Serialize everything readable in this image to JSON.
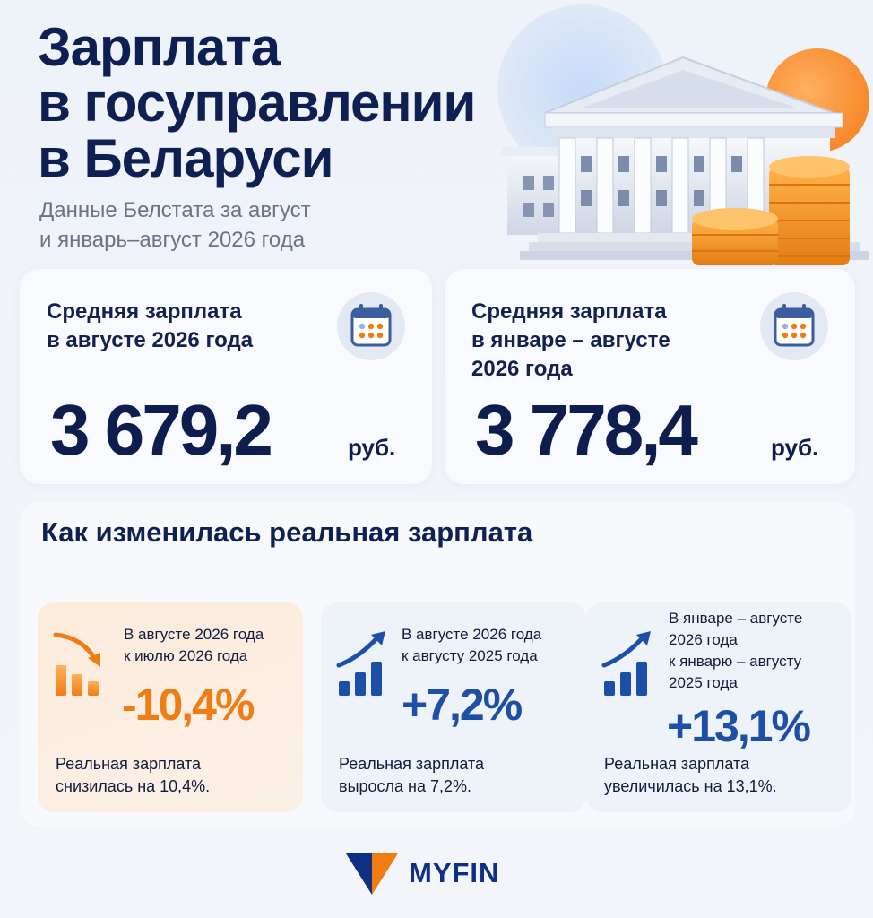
{
  "header": {
    "title_lines": [
      "Зарплата",
      "в госуправлении",
      "в Беларуси"
    ],
    "subtitle_lines": [
      "Данные Белстата за август",
      "и январь–август 2026 года"
    ]
  },
  "cards": [
    {
      "label_lines": [
        "Средняя зарплата",
        "в августе 2026 года"
      ],
      "value": "3 679,2",
      "unit": "руб.",
      "icon": "calendar-icon"
    },
    {
      "label_lines": [
        "Средняя зарплата",
        "в январе – августе",
        "2026 года"
      ],
      "value": "3 778,4",
      "unit": "руб.",
      "icon": "calendar-icon"
    }
  ],
  "real_wage": {
    "title": "Как изменилась реальная зарплата",
    "items": [
      {
        "caption_lines": [
          "В августе 2026 года",
          "к июлю 2026 года"
        ],
        "value": "-10,4%",
        "note_lines": [
          "Реальная зарплата",
          "снизилась на 10,4%."
        ],
        "icon": "chart-down-icon",
        "color": "#f07d14"
      },
      {
        "caption_lines": [
          "В августе 2026 года",
          "к августу 2025 года"
        ],
        "value": "+7,2%",
        "note_lines": [
          "Реальная зарплата",
          "выросла на 7,2%."
        ],
        "icon": "chart-up-icon",
        "color": "#1d4fa6"
      },
      {
        "caption_lines": [
          "В январе – августе",
          "2026 года",
          "к январю – августу",
          "2025 года"
        ],
        "value": "+13,1%",
        "note_lines": [
          "Реальная зарплата",
          "увеличилась на 13,1%."
        ],
        "icon": "chart-up-icon",
        "color": "#1d4fa6"
      }
    ]
  },
  "footer": {
    "brand": "MYFIN",
    "brand_color": "#0d2f84",
    "accent_color": "#f07d14"
  }
}
